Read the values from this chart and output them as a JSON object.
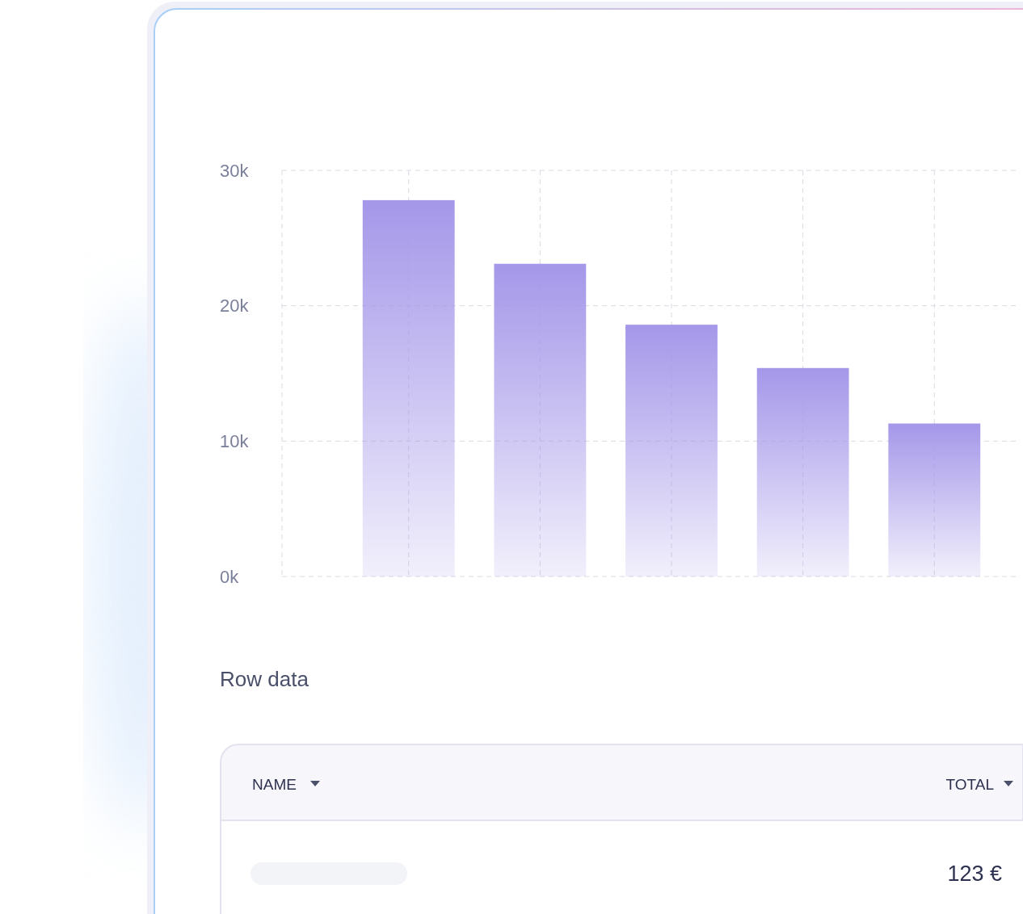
{
  "chart_data": {
    "type": "bar",
    "categories": [
      null,
      null,
      null,
      null,
      null
    ],
    "values": [
      27.8,
      23.1,
      18.6,
      15.4,
      11.3
    ],
    "color": "#a597e9",
    "ylim": [
      0,
      30
    ],
    "yticks": [
      {
        "value": 0,
        "label": "0k"
      },
      {
        "value": 10,
        "label": "10k"
      },
      {
        "value": 20,
        "label": "20k"
      },
      {
        "value": 30,
        "label": "30k"
      }
    ],
    "grid": true,
    "annotations": [
      "Row data",
      "NAME",
      "TOTAL",
      "123 €"
    ]
  }
}
